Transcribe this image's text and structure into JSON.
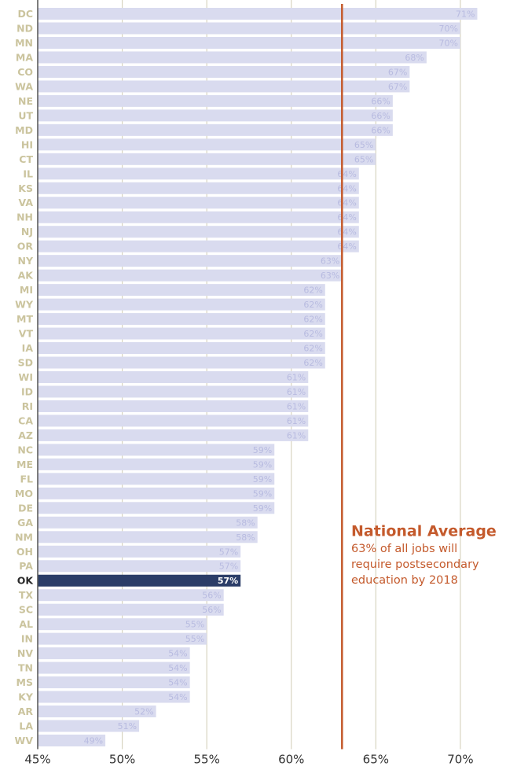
{
  "chart_data": {
    "type": "bar",
    "orientation": "horizontal",
    "categories": [
      "DC",
      "ND",
      "MN",
      "MA",
      "CO",
      "WA",
      "NE",
      "UT",
      "MD",
      "HI",
      "CT",
      "IL",
      "KS",
      "VA",
      "NH",
      "NJ",
      "OR",
      "NY",
      "AK",
      "MI",
      "WY",
      "MT",
      "VT",
      "IA",
      "SD",
      "WI",
      "ID",
      "RI",
      "CA",
      "AZ",
      "NC",
      "ME",
      "FL",
      "MO",
      "DE",
      "GA",
      "NM",
      "OH",
      "PA",
      "OK",
      "TX",
      "SC",
      "AL",
      "IN",
      "NV",
      "TN",
      "MS",
      "KY",
      "AR",
      "LA",
      "WV"
    ],
    "values": [
      71,
      70,
      70,
      68,
      67,
      67,
      66,
      66,
      66,
      65,
      65,
      64,
      64,
      64,
      64,
      64,
      64,
      63,
      63,
      62,
      62,
      62,
      62,
      62,
      62,
      61,
      61,
      61,
      61,
      61,
      59,
      59,
      59,
      59,
      59,
      58,
      58,
      57,
      57,
      57,
      56,
      56,
      55,
      55,
      54,
      54,
      54,
      54,
      52,
      51,
      49
    ],
    "value_labels": [
      "71%",
      "70%",
      "70%",
      "68%",
      "67%",
      "67%",
      "66%",
      "66%",
      "66%",
      "65%",
      "65%",
      "64%",
      "64%",
      "64%",
      "64%",
      "64%",
      "64%",
      "63%",
      "63%",
      "62%",
      "62%",
      "62%",
      "62%",
      "62%",
      "62%",
      "61%",
      "61%",
      "61%",
      "61%",
      "61%",
      "59%",
      "59%",
      "59%",
      "59%",
      "59%",
      "58%",
      "58%",
      "57%",
      "57%",
      "57%",
      "56%",
      "56%",
      "55%",
      "55%",
      "54%",
      "54%",
      "54%",
      "54%",
      "52%",
      "51%",
      "49%"
    ],
    "color": "#d9dbef",
    "highlight": "OK",
    "highlight_color": "#2b3d68",
    "xlim": [
      45,
      73.35
    ],
    "xticks": [
      {
        "value": 45,
        "label": "45%"
      },
      {
        "value": 50,
        "label": "50%"
      },
      {
        "value": 55,
        "label": "55%"
      },
      {
        "value": 60,
        "label": "60%"
      },
      {
        "value": 65,
        "label": "65%"
      },
      {
        "value": 70,
        "label": "70%"
      }
    ],
    "grid": true,
    "average": 63,
    "average_color": "#c45a2c",
    "annotation": {
      "title": "National Average",
      "lines": [
        "63% of all jobs will",
        "require postsecondary",
        "education by 2018"
      ]
    }
  }
}
